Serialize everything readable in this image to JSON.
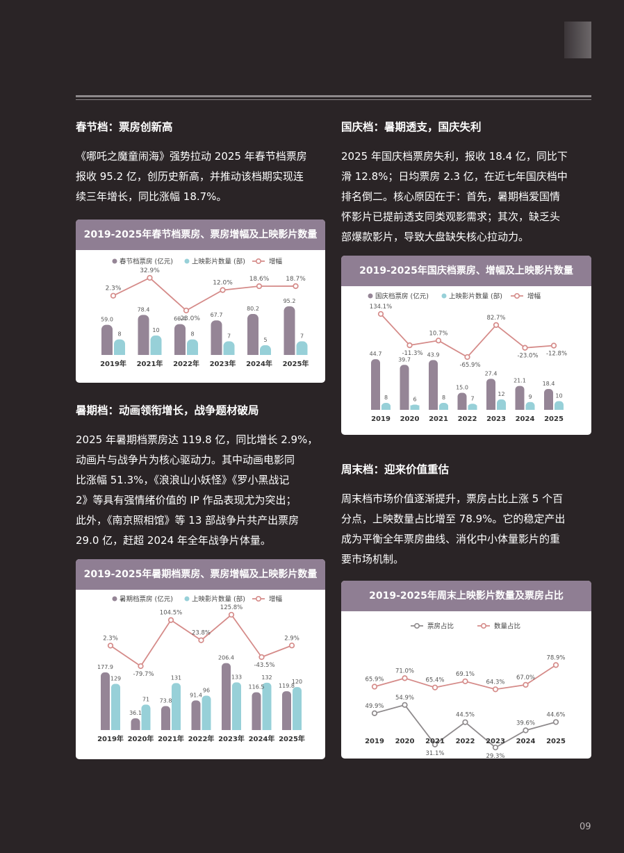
{
  "page_number": "09",
  "sections": {
    "spring": {
      "heading": "春节档：票房创新高",
      "lines": [
        "《哪吒之魔童闹海》强势拉动 2025 年春节档票房",
        "报收 95.2 亿，创历史新高，并推动该档期实现连",
        "续三年增长，同比涨幅 18.7%。"
      ]
    },
    "national": {
      "heading": "国庆档：暑期透支，国庆失利",
      "lines": [
        "2025 年国庆档票房失利，报收 18.4 亿，同比下",
        "滑 12.8%；日均票房 2.3 亿，在近七年国庆档中",
        "排名倒二。核心原因在于：首先，暑期档爱国情",
        "怀影片已提前透支同类观影需求；其次，缺乏头",
        "部爆款影片，导致大盘缺失核心拉动力。"
      ]
    },
    "summer": {
      "heading": "暑期档：动画领衔增长，战争题材破局",
      "lines": [
        "2025 年暑期档票房达 119.8 亿，同比增长 2.9%，",
        "动画片与战争片为核心驱动力。其中动画电影同",
        "比涨幅 51.3%，《浪浪山小妖怪》《罗小黑战记",
        "2》等具有强情绪价值的 IP 作品表现尤为突出；",
        "此外，《南京照相馆》等 13 部战争片共产出票房",
        "29.0 亿，赶超 2024 年全年战争片体量。"
      ]
    },
    "weekend": {
      "heading": "周末档：迎来价值重估",
      "lines": [
        "周末档市场价值逐渐提升，票房占比上涨 5 个百",
        "分点，上映数量占比增至 78.9%。它的稳定产出",
        "成为平衡全年票房曲线、消化中小体量影片的重",
        "要市场机制。"
      ]
    }
  },
  "colors": {
    "bar": "#958596",
    "bar2": "#97d0d8",
    "line": "#d58b89",
    "gray_line": "#8e8a8c",
    "title_bg": "#8f7e93"
  },
  "chart_data": [
    {
      "id": "spring",
      "type": "bar",
      "title": "2019-2025年春节档票房、票房增幅及上映影片数量",
      "legend": [
        "春节档票房 (亿元)",
        "上映影片数量 (部)",
        "增幅"
      ],
      "categories": [
        "2019年",
        "2021年",
        "2022年",
        "2023年",
        "2024年",
        "2025年"
      ],
      "series": [
        {
          "name": "春节档票房 (亿元)",
          "values": [
            59.0,
            78.4,
            60.4,
            67.7,
            80.2,
            95.2
          ],
          "labels": [
            "59.0",
            "78.4",
            "60.4",
            "67.7",
            "80.2",
            "95.2"
          ]
        },
        {
          "name": "上映影片数量 (部)",
          "values": [
            8,
            10,
            8,
            7,
            5,
            7
          ],
          "labels": [
            "8",
            "10",
            "8",
            "7",
            "5",
            "7"
          ]
        }
      ],
      "line": {
        "name": "增幅",
        "values": [
          2.3,
          32.9,
          -23.0,
          12.0,
          18.6,
          18.7
        ],
        "labels": [
          "2.3%",
          "32.9%",
          "-23.0%",
          "12.0%",
          "18.6%",
          "18.7%"
        ]
      }
    },
    {
      "id": "national",
      "type": "bar",
      "title": "2019-2025年国庆档票房、增幅及上映影片数量",
      "legend": [
        "国庆档票房 (亿元)",
        "上映影片数量 (部)",
        "增幅"
      ],
      "categories": [
        "2019",
        "2020",
        "2021",
        "2022",
        "2023",
        "2024",
        "2025"
      ],
      "series": [
        {
          "name": "国庆档票房 (亿元)",
          "values": [
            44.7,
            39.7,
            43.9,
            15.0,
            27.4,
            21.1,
            18.4
          ],
          "labels": [
            "44.7",
            "39.7",
            "43.9",
            "15.0",
            "27.4",
            "21.1",
            "18.4"
          ]
        },
        {
          "name": "上映影片数量 (部)",
          "values": [
            8,
            6,
            8,
            7,
            12,
            9,
            10
          ],
          "labels": [
            "8",
            "6",
            "8",
            "7",
            "12",
            "9",
            "10"
          ]
        }
      ],
      "line": {
        "name": "增幅",
        "values": [
          134.1,
          -11.3,
          10.7,
          -65.9,
          82.7,
          -23.0,
          -12.8
        ],
        "labels": [
          "134.1%",
          "-11.3%",
          "10.7%",
          "-65.9%",
          "82.7%",
          "-23.0%",
          "-12.8%"
        ]
      }
    },
    {
      "id": "summer",
      "type": "bar",
      "title": "2019-2025年暑期档票房、票房增幅及上映影片数量",
      "legend": [
        "暑期档票房 (亿元)",
        "上映影片数量 (部)",
        "增幅"
      ],
      "categories": [
        "2019年",
        "2020年",
        "2021年",
        "2022年",
        "2023年",
        "2024年",
        "2025年"
      ],
      "series": [
        {
          "name": "暑期档票房 (亿元)",
          "values": [
            177.9,
            36.1,
            73.8,
            91.4,
            206.4,
            116.5,
            119.8
          ],
          "labels": [
            "177.9",
            "36.1",
            "73.8",
            "91.4",
            "206.4",
            "116.5",
            "119.8"
          ]
        },
        {
          "name": "上映影片数量 (部)",
          "values": [
            129,
            71,
            131,
            96,
            133,
            132,
            120
          ],
          "labels": [
            "129",
            "71",
            "131",
            "96",
            "133",
            "132",
            "120"
          ]
        }
      ],
      "line": {
        "name": "增幅",
        "values": [
          2.3,
          -79.7,
          104.5,
          23.8,
          125.8,
          -43.5,
          2.9
        ],
        "labels": [
          "2.3%",
          "-79.7%",
          "104.5%",
          "23.8%",
          "125.8%",
          "-43.5%",
          "2.9%"
        ]
      }
    },
    {
      "id": "weekend",
      "type": "line",
      "title": "2019-2025年周末上映影片数量及票房占比",
      "legend": [
        "票房占比",
        "数量占比"
      ],
      "categories": [
        "2019",
        "2020",
        "2021",
        "2022",
        "2023",
        "2024",
        "2025"
      ],
      "series": [
        {
          "name": "票房占比",
          "values": [
            49.9,
            54.9,
            31.1,
            44.5,
            29.3,
            39.6,
            44.6
          ],
          "labels": [
            "49.9%",
            "54.9%",
            "31.1%",
            "44.5%",
            "29.3%",
            "39.6%",
            "44.6%"
          ]
        },
        {
          "name": "数量占比",
          "values": [
            65.9,
            71.0,
            65.4,
            69.1,
            64.3,
            67.0,
            78.9
          ],
          "labels": [
            "65.9%",
            "71.0%",
            "65.4%",
            "69.1%",
            "64.3%",
            "67.0%",
            "78.9%"
          ]
        }
      ]
    }
  ]
}
